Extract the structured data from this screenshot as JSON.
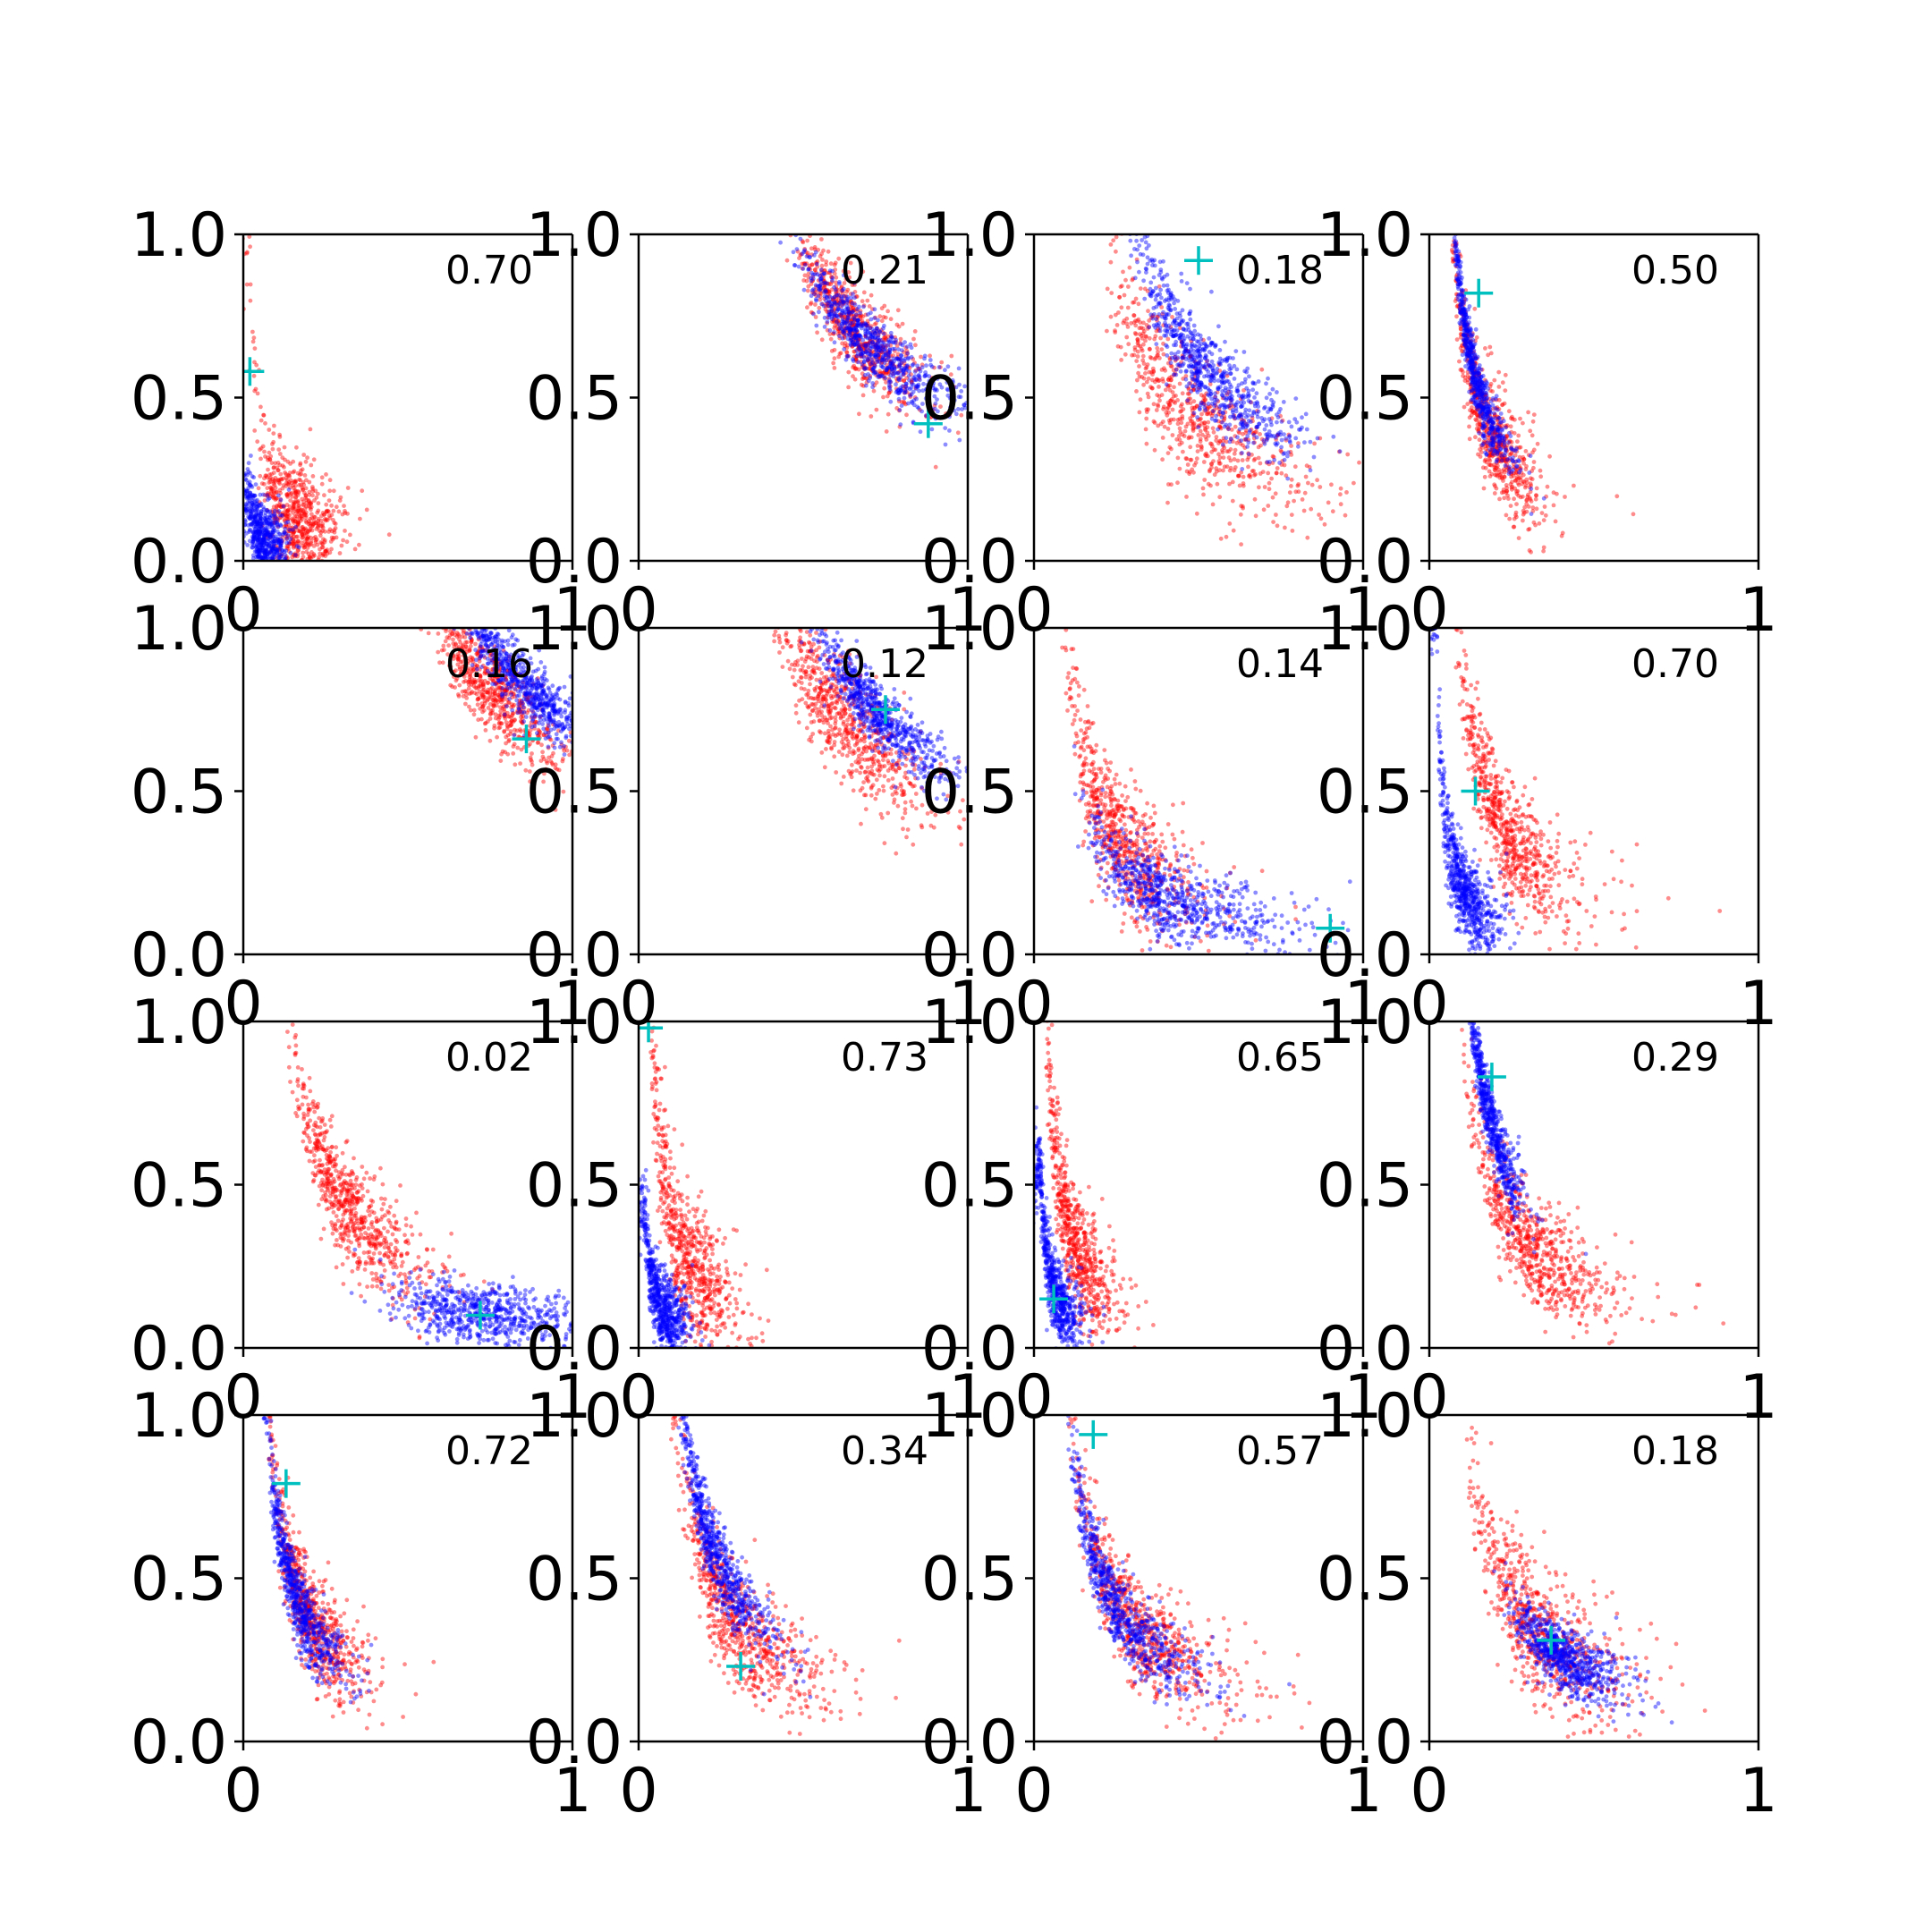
{
  "chart_data": {
    "type": "scatter",
    "grid": false,
    "legend": "none",
    "layout": {
      "rows": 4,
      "cols": 4
    },
    "marker_colors": {
      "series_a": "#ff0000",
      "series_b": "#0000ff",
      "marker": "#00bfbf"
    },
    "xlim": [
      0,
      1
    ],
    "ylim": [
      0,
      1
    ],
    "x_tick_labels": [
      "0",
      "1"
    ],
    "y_tick_labels": [
      "0.0",
      "0.5",
      "1.0"
    ],
    "panels": [
      {
        "annotation": "0.70",
        "marker": [
          0.02,
          0.58
        ],
        "red": {
          "cx": 0.16,
          "cy": 0.12,
          "spread": 0.28,
          "band": 0.09
        },
        "blue": {
          "cx": 0.06,
          "cy": 0.06,
          "spread": 0.3,
          "band": 0.06
        }
      },
      {
        "annotation": "0.21",
        "marker": [
          0.88,
          0.42
        ],
        "red": {
          "cx": 0.66,
          "cy": 0.7,
          "spread": 0.14,
          "band": 0.07
        },
        "blue": {
          "cx": 0.72,
          "cy": 0.64,
          "spread": 0.18,
          "band": 0.05
        }
      },
      {
        "annotation": "0.18",
        "marker": [
          0.5,
          0.92
        ],
        "red": {
          "cx": 0.48,
          "cy": 0.45,
          "spread": 0.3,
          "band": 0.1
        },
        "blue": {
          "cx": 0.52,
          "cy": 0.58,
          "spread": 0.22,
          "band": 0.07
        }
      },
      {
        "annotation": "0.50",
        "marker": [
          0.15,
          0.82
        ],
        "red": {
          "cx": 0.18,
          "cy": 0.4,
          "spread": 0.34,
          "band": 0.08
        },
        "blue": {
          "cx": 0.13,
          "cy": 0.6,
          "spread": 0.32,
          "band": 0.05
        }
      },
      {
        "annotation": "0.16",
        "marker": [
          0.86,
          0.66
        ],
        "red": {
          "cx": 0.76,
          "cy": 0.8,
          "spread": 0.12,
          "band": 0.07
        },
        "blue": {
          "cx": 0.86,
          "cy": 0.82,
          "spread": 0.12,
          "band": 0.05
        }
      },
      {
        "annotation": "0.12",
        "marker": [
          0.75,
          0.75
        ],
        "red": {
          "cx": 0.62,
          "cy": 0.72,
          "spread": 0.18,
          "band": 0.09
        },
        "blue": {
          "cx": 0.72,
          "cy": 0.74,
          "spread": 0.14,
          "band": 0.05
        }
      },
      {
        "annotation": "0.14",
        "marker": [
          0.9,
          0.08
        ],
        "red": {
          "cx": 0.26,
          "cy": 0.35,
          "spread": 0.34,
          "band": 0.1
        },
        "blue": {
          "cx": 0.42,
          "cy": 0.16,
          "spread": 0.36,
          "band": 0.06
        }
      },
      {
        "annotation": "0.70",
        "marker": [
          0.14,
          0.5
        ],
        "red": {
          "cx": 0.24,
          "cy": 0.36,
          "spread": 0.34,
          "band": 0.09
        },
        "blue": {
          "cx": 0.1,
          "cy": 0.2,
          "spread": 0.3,
          "band": 0.07
        }
      },
      {
        "annotation": "0.02",
        "marker": [
          0.72,
          0.1
        ],
        "red": {
          "cx": 0.32,
          "cy": 0.42,
          "spread": 0.3,
          "band": 0.08
        },
        "blue": {
          "cx": 0.72,
          "cy": 0.1,
          "spread": 0.2,
          "band": 0.05
        }
      },
      {
        "annotation": "0.73",
        "marker": [
          0.03,
          0.98
        ],
        "red": {
          "cx": 0.14,
          "cy": 0.28,
          "spread": 0.34,
          "band": 0.1
        },
        "blue": {
          "cx": 0.07,
          "cy": 0.12,
          "spread": 0.3,
          "band": 0.06
        }
      },
      {
        "annotation": "0.65",
        "marker": [
          0.06,
          0.15
        ],
        "red": {
          "cx": 0.12,
          "cy": 0.32,
          "spread": 0.34,
          "band": 0.09
        },
        "blue": {
          "cx": 0.06,
          "cy": 0.18,
          "spread": 0.32,
          "band": 0.06
        }
      },
      {
        "annotation": "0.29",
        "marker": [
          0.19,
          0.83
        ],
        "red": {
          "cx": 0.3,
          "cy": 0.32,
          "spread": 0.34,
          "band": 0.08
        },
        "blue": {
          "cx": 0.18,
          "cy": 0.72,
          "spread": 0.2,
          "band": 0.05
        }
      },
      {
        "annotation": "0.72",
        "marker": [
          0.13,
          0.79
        ],
        "red": {
          "cx": 0.2,
          "cy": 0.38,
          "spread": 0.34,
          "band": 0.08
        },
        "blue": {
          "cx": 0.16,
          "cy": 0.44,
          "spread": 0.34,
          "band": 0.06
        }
      },
      {
        "annotation": "0.34",
        "marker": [
          0.31,
          0.23
        ],
        "red": {
          "cx": 0.3,
          "cy": 0.36,
          "spread": 0.32,
          "band": 0.09
        },
        "blue": {
          "cx": 0.23,
          "cy": 0.58,
          "spread": 0.28,
          "band": 0.06
        }
      },
      {
        "annotation": "0.57",
        "marker": [
          0.18,
          0.94
        ],
        "red": {
          "cx": 0.32,
          "cy": 0.34,
          "spread": 0.34,
          "band": 0.08
        },
        "blue": {
          "cx": 0.26,
          "cy": 0.4,
          "spread": 0.36,
          "band": 0.06
        }
      },
      {
        "annotation": "0.18",
        "marker": [
          0.37,
          0.31
        ],
        "red": {
          "cx": 0.32,
          "cy": 0.34,
          "spread": 0.32,
          "band": 0.11
        },
        "blue": {
          "cx": 0.4,
          "cy": 0.26,
          "spread": 0.18,
          "band": 0.05
        }
      }
    ]
  }
}
